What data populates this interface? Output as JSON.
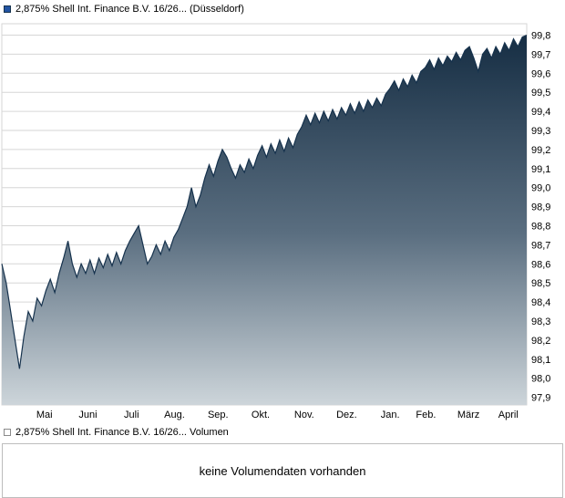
{
  "legend_top": {
    "label": "2,875% Shell Int. Finance B.V. 16/26... (Düsseldorf)"
  },
  "legend_volume": {
    "label": "2,875% Shell Int. Finance B.V. 16/26... Volumen"
  },
  "volume_panel": {
    "message": "keine Volumendaten vorhanden"
  },
  "chart_data": {
    "type": "area",
    "title": "2,875% Shell Int. Finance B.V. 16/26... (Düsseldorf)",
    "xlabel": "",
    "ylabel": "",
    "grid": "horizontal",
    "legend_position": "top-left",
    "ylim": [
      97.86,
      99.86
    ],
    "x_tick_labels": [
      "Mai",
      "Juni",
      "Juli",
      "Aug.",
      "Sep.",
      "Okt.",
      "Nov.",
      "Dez.",
      "Jan.",
      "Feb.",
      "März",
      "April"
    ],
    "x_tick_positions": [
      0.081,
      0.164,
      0.247,
      0.329,
      0.412,
      0.493,
      0.576,
      0.657,
      0.74,
      0.808,
      0.889,
      0.965
    ],
    "y_tick_values": [
      99.8,
      99.7,
      99.6,
      99.5,
      99.4,
      99.3,
      99.2,
      99.1,
      99.0,
      98.9,
      98.8,
      98.7,
      98.6,
      98.5,
      98.4,
      98.3,
      98.2,
      98.1,
      98.0,
      97.9
    ],
    "y_tick_labels": [
      "99,8",
      "99,7",
      "99,6",
      "99,5",
      "99,4",
      "99,3",
      "99,2",
      "99,1",
      "99,0",
      "98,9",
      "98,8",
      "98,7",
      "98,6",
      "98,5",
      "98,4",
      "98,3",
      "98,2",
      "98,1",
      "98,0",
      "97,9"
    ],
    "series": [
      {
        "name": "2,875% Shell Int. Finance B.V. 16/26... (Düsseldorf)",
        "values": [
          98.6,
          98.5,
          98.35,
          98.2,
          98.05,
          98.22,
          98.35,
          98.3,
          98.42,
          98.38,
          98.46,
          98.52,
          98.45,
          98.55,
          98.63,
          98.72,
          98.6,
          98.53,
          98.6,
          98.55,
          98.62,
          98.55,
          98.63,
          98.58,
          98.65,
          98.59,
          98.66,
          98.6,
          98.67,
          98.72,
          98.76,
          98.8,
          98.7,
          98.6,
          98.64,
          98.7,
          98.65,
          98.72,
          98.67,
          98.74,
          98.78,
          98.84,
          98.9,
          99.0,
          98.9,
          98.96,
          99.05,
          99.12,
          99.06,
          99.14,
          99.2,
          99.16,
          99.1,
          99.05,
          99.12,
          99.08,
          99.15,
          99.1,
          99.17,
          99.22,
          99.16,
          99.23,
          99.18,
          99.25,
          99.19,
          99.26,
          99.21,
          99.28,
          99.32,
          99.38,
          99.33,
          99.39,
          99.34,
          99.4,
          99.35,
          99.41,
          99.36,
          99.42,
          99.38,
          99.44,
          99.39,
          99.45,
          99.4,
          99.46,
          99.42,
          99.47,
          99.43,
          99.49,
          99.52,
          99.56,
          99.51,
          99.57,
          99.53,
          99.59,
          99.55,
          99.61,
          99.63,
          99.67,
          99.62,
          99.68,
          99.64,
          99.69,
          99.66,
          99.71,
          99.67,
          99.72,
          99.74,
          99.68,
          99.61,
          99.7,
          99.73,
          99.68,
          99.74,
          99.7,
          99.76,
          99.72,
          99.78,
          99.74,
          99.79,
          99.8
        ]
      }
    ],
    "colors": {
      "legend_marker": "#2254a3",
      "line": "#16324d",
      "fill_top": "#122a40",
      "fill_mid": "#5a6e80",
      "fill_bottom": "#cdd5da",
      "grid": "#d6d6d6",
      "plot_border": "#d6d6d6"
    }
  }
}
